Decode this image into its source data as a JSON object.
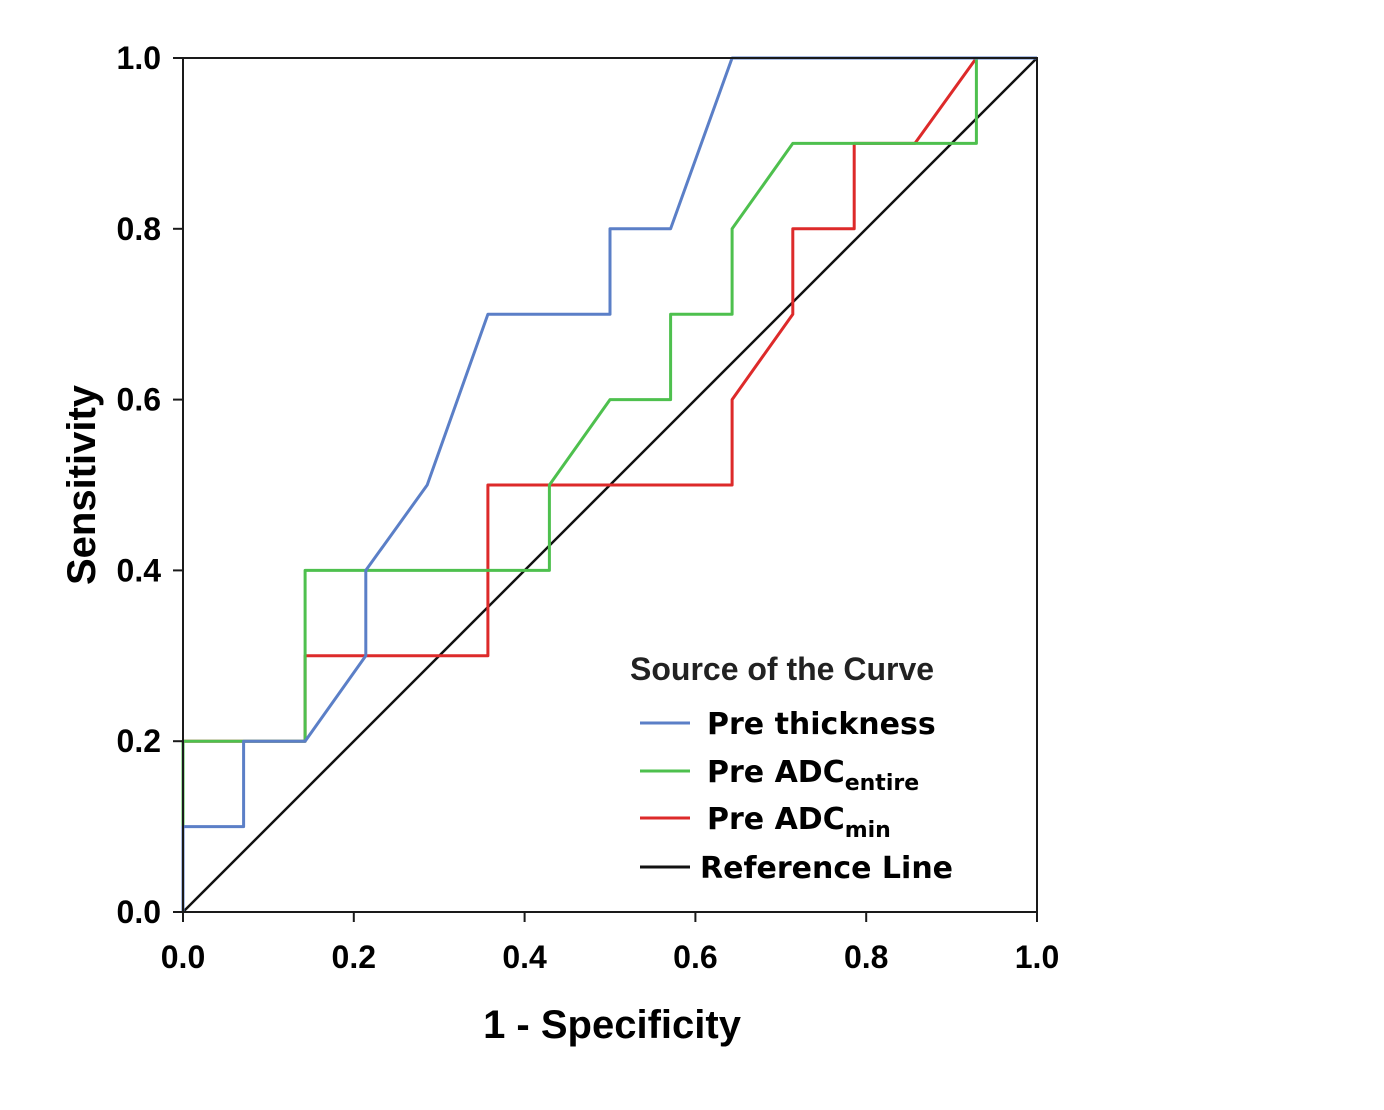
{
  "chart_data": {
    "type": "line",
    "title": "",
    "xlabel": "1 - Specificity",
    "ylabel": "Sensitivity",
    "xlim": [
      0,
      1
    ],
    "ylim": [
      0,
      1
    ],
    "xticks": [
      "0.0",
      "0.2",
      "0.4",
      "0.6",
      "0.8",
      "1.0"
    ],
    "yticks": [
      "0.0",
      "0.2",
      "0.4",
      "0.6",
      "0.8",
      "1.0"
    ],
    "grid": false,
    "legend": {
      "title": "Source of the Curve",
      "position": "bottom-right"
    },
    "series": [
      {
        "name": "Pre thickness",
        "label_main": "Pre thickness",
        "label_sub": "",
        "color": "#5b7fc7",
        "x": [
          0,
          0,
          0.071,
          0.071,
          0.143,
          0.214,
          0.214,
          0.286,
          0.357,
          0.5,
          0.5,
          0.571,
          0.643,
          1.0
        ],
        "y": [
          0,
          0.1,
          0.1,
          0.2,
          0.2,
          0.3,
          0.4,
          0.5,
          0.7,
          0.7,
          0.8,
          0.8,
          1.0,
          1.0
        ]
      },
      {
        "name": "Pre ADCentire",
        "label_main": "Pre ADC",
        "label_sub": "entire",
        "color": "#4ec04e",
        "x": [
          0,
          0,
          0.143,
          0.143,
          0.429,
          0.429,
          0.5,
          0.571,
          0.571,
          0.643,
          0.643,
          0.714,
          0.929,
          0.929,
          1.0
        ],
        "y": [
          0,
          0.2,
          0.2,
          0.4,
          0.4,
          0.5,
          0.6,
          0.6,
          0.7,
          0.7,
          0.8,
          0.9,
          0.9,
          1.0,
          1.0
        ]
      },
      {
        "name": "Pre ADCmin",
        "label_main": "Pre ADC",
        "label_sub": "min",
        "color": "#dd2a2a",
        "x": [
          0,
          0,
          0.143,
          0.143,
          0.357,
          0.357,
          0.643,
          0.643,
          0.714,
          0.714,
          0.786,
          0.786,
          0.857,
          0.929,
          1.0
        ],
        "y": [
          0,
          0.2,
          0.2,
          0.3,
          0.3,
          0.5,
          0.5,
          0.6,
          0.7,
          0.8,
          0.8,
          0.9,
          0.9,
          1.0,
          1.0
        ]
      },
      {
        "name": "Reference Line",
        "label_main": "Reference Line",
        "label_sub": "",
        "color": "#111111",
        "x": [
          0,
          1
        ],
        "y": [
          0,
          1
        ]
      }
    ]
  }
}
